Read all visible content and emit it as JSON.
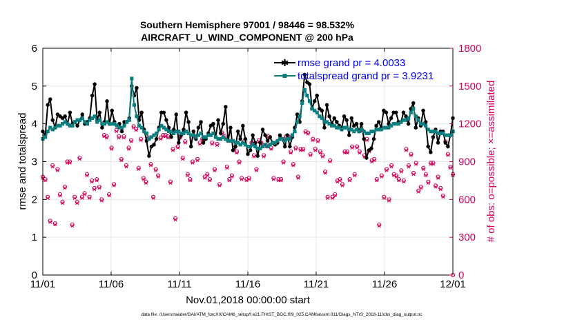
{
  "chart_data": {
    "type": "line",
    "title": "Southern Hemisphere 97001 / 98446 = 98.532%",
    "subtitle": "AIRCRAFT_U_WIND_COMPONENT @ 200 hPa",
    "xlabel": "Nov.01,2018 00:00:00 start",
    "ylabel": "rmse and totalspread",
    "y2label": "# of obs: o=possible; ×=assimilated",
    "footer": "data file: /Users/raeder/DAI/ATM_forcXX/CAM6_setup/f.e21.FHIST_BGC.f09_025.CAM6assim.011/Diags_NTrS_2018-11/obs_diag_output.nc",
    "xlim": [
      0,
      30
    ],
    "ylim": [
      0,
      6
    ],
    "y2lim": [
      0,
      1800
    ],
    "x_tick_values": [
      0,
      5,
      10,
      15,
      20,
      25,
      30
    ],
    "x_tick_labels": [
      "11/01",
      "11/06",
      "11/11",
      "11/16",
      "11/21",
      "11/26",
      "12/01"
    ],
    "y_tick_values": [
      0,
      1,
      2,
      3,
      4,
      5,
      6
    ],
    "y_tick_labels": [
      "0",
      "1",
      "2",
      "3",
      "4",
      "5",
      "6"
    ],
    "y2_tick_values": [
      0,
      300,
      600,
      900,
      1200,
      1500,
      1800
    ],
    "y2_tick_labels": [
      "0",
      "300",
      "600",
      "900",
      "1200",
      "1500",
      "1800"
    ],
    "grid": true,
    "legend": "top-right",
    "series": [
      {
        "name": "rmse grand pr = 4.0033",
        "axis": "left",
        "color": "#000000",
        "marker": "asterisk",
        "values": [
          3.8,
          3.7,
          4.5,
          4.65,
          4.1,
          3.9,
          4.25,
          4.2,
          4.15,
          4.2,
          4.0,
          4.3,
          4.0,
          4.05,
          3.95,
          4.1,
          4.25,
          4.0,
          4.05,
          4.15,
          4.75,
          5.05,
          4.1,
          4.3,
          3.9,
          4.05,
          4.6,
          4.0,
          4.35,
          4.05,
          3.95,
          4.0,
          3.8,
          4.05,
          4.05,
          4.15,
          5.0,
          4.75,
          4.95,
          4.1,
          4.3,
          3.85,
          3.55,
          3.15,
          3.4,
          3.45,
          3.6,
          3.9,
          4.3,
          4.3,
          4.1,
          3.9,
          3.65,
          3.85,
          4.25,
          3.5,
          3.7,
          3.85,
          4.3,
          4.05,
          3.4,
          3.8,
          3.6,
          3.9,
          4.05,
          3.5,
          3.6,
          3.75,
          3.95,
          4.0,
          3.65,
          4.1,
          3.75,
          4.0,
          4.45,
          3.55,
          3.9,
          3.3,
          3.4,
          3.8,
          3.6,
          3.95,
          3.6,
          3.2,
          3.3,
          3.7,
          3.5,
          3.15,
          3.5,
          3.85,
          3.7,
          3.55,
          3.65,
          3.5,
          3.45,
          3.5,
          3.7,
          3.6,
          3.4,
          3.7,
          3.4,
          3.65,
          3.9,
          4.25,
          4.05,
          4.6,
          5.3,
          5.1,
          5.05,
          4.4,
          4.6,
          4.75,
          4.4,
          4.35,
          3.9,
          4.5,
          4.2,
          4.0,
          4.15,
          4.05,
          3.95,
          3.9,
          4.2,
          4.1,
          3.7,
          4.15,
          3.95,
          4.0,
          3.8,
          4.0,
          3.6,
          3.1,
          3.3,
          3.35,
          3.6,
          3.95,
          4.05,
          3.9,
          4.35,
          4.3,
          4.0,
          4.15,
          4.3,
          4.3,
          4.05,
          4.05,
          4.3,
          4.2,
          4.0,
          4.4,
          4.55,
          3.9,
          4.15,
          3.95,
          4.35,
          4.05,
          3.4,
          3.25,
          3.65,
          3.85,
          3.5,
          3.8,
          3.8,
          3.5,
          3.4,
          3.7,
          4.15
        ]
      },
      {
        "name": "totalspread grand pr = 3.9231",
        "axis": "left",
        "color": "#0b7f7f",
        "marker": "square",
        "values": [
          3.6,
          3.65,
          3.8,
          3.9,
          3.85,
          3.9,
          3.95,
          3.95,
          4.0,
          4.05,
          4.0,
          3.95,
          3.95,
          4.05,
          4.1,
          4.1,
          4.15,
          4.05,
          4.0,
          4.1,
          4.15,
          4.2,
          4.05,
          4.1,
          4.0,
          4.0,
          4.05,
          4.0,
          4.0,
          4.0,
          3.95,
          3.9,
          3.9,
          3.95,
          4.05,
          4.1,
          5.2,
          4.5,
          4.2,
          3.95,
          3.9,
          3.8,
          3.75,
          3.6,
          3.65,
          3.7,
          3.75,
          3.85,
          3.95,
          3.9,
          3.85,
          3.8,
          3.8,
          3.75,
          3.8,
          3.8,
          3.75,
          3.75,
          3.8,
          3.75,
          3.7,
          3.7,
          3.65,
          3.7,
          3.75,
          3.65,
          3.65,
          3.7,
          3.7,
          3.75,
          3.65,
          3.6,
          3.6,
          3.65,
          3.6,
          3.55,
          3.55,
          3.55,
          3.5,
          3.5,
          3.45,
          3.5,
          3.45,
          3.4,
          3.4,
          3.45,
          3.4,
          3.35,
          3.35,
          3.4,
          3.45,
          3.4,
          3.45,
          3.5,
          3.5,
          3.55,
          3.6,
          3.6,
          3.55,
          3.6,
          3.6,
          3.7,
          3.8,
          4.05,
          4.2,
          4.55,
          4.9,
          4.75,
          4.6,
          4.4,
          4.35,
          4.3,
          4.2,
          4.15,
          4.05,
          4.05,
          4.0,
          3.95,
          3.95,
          3.9,
          3.9,
          3.85,
          3.9,
          3.9,
          3.85,
          3.85,
          3.8,
          3.85,
          3.8,
          3.85,
          3.8,
          3.75,
          3.75,
          3.8,
          3.8,
          3.85,
          3.85,
          3.85,
          3.9,
          3.9,
          3.9,
          3.95,
          4.0,
          4.0,
          4.0,
          4.05,
          4.1,
          4.1,
          4.15,
          4.3,
          4.4,
          4.2,
          4.1,
          4.0,
          4.0,
          3.95,
          3.85,
          3.8,
          3.8,
          3.8,
          3.75,
          3.75,
          3.75,
          3.7,
          3.7,
          3.7,
          3.8
        ]
      }
    ],
    "obs_possible": {
      "name": "possible",
      "axis": "right",
      "color": "#d40059",
      "marker": "circle",
      "values": [
        780,
        760,
        620,
        430,
        870,
        410,
        840,
        640,
        580,
        700,
        900,
        900,
        400,
        620,
        580,
        930,
        620,
        650,
        800,
        620,
        750,
        690,
        760,
        700,
        600,
        1110,
        1100,
        640,
        1010,
        720,
        1150,
        1100,
        920,
        1100,
        870,
        1010,
        1070,
        1180,
        1160,
        850,
        1080,
        770,
        740,
        1090,
        880,
        620,
        840,
        790,
        1090,
        1110,
        1110,
        1100,
        740,
        1000,
        450,
        1020,
        1100,
        930,
        1060,
        800,
        760,
        900,
        1100,
        920,
        1050,
        1080,
        780,
        800,
        760,
        1050,
        840,
        1040,
        720,
        1130,
        1100,
        860,
        760,
        790,
        1010,
        980,
        900,
        770,
        1060,
        760,
        770,
        1050,
        950,
        840,
        1070,
        1050,
        950,
        1030,
        1100,
        1010,
        770,
        1050,
        760,
        760,
        900,
        1100,
        1100,
        980,
        880,
        1010,
        780,
        1000,
        1000,
        1140,
        1130,
        960,
        1080,
        1000,
        1070,
        980,
        950,
        820,
        620,
        910,
        620,
        640,
        750,
        760,
        720,
        980,
        980,
        760,
        1020,
        800,
        1020,
        980,
        1150,
        950,
        1080,
        990,
        910,
        920,
        760,
        400,
        790,
        620,
        840,
        600,
        870,
        800,
        790,
        760,
        830,
        750,
        1000,
        870,
        960,
        810,
        890,
        670,
        700,
        850,
        800,
        740,
        890,
        890,
        710,
        780,
        690,
        630,
        1060,
        960,
        860,
        800
      ]
    },
    "obs_assimilated": {
      "name": "assimilated",
      "axis": "right",
      "color": "#d40059",
      "marker": "x",
      "values": [
        770,
        750,
        610,
        420,
        860,
        400,
        830,
        630,
        570,
        690,
        890,
        890,
        390,
        610,
        570,
        920,
        610,
        640,
        790,
        610,
        740,
        680,
        750,
        690,
        590,
        1100,
        1090,
        630,
        1000,
        710,
        1140,
        1090,
        910,
        1090,
        860,
        1000,
        1060,
        1170,
        1150,
        840,
        1070,
        760,
        730,
        1080,
        870,
        610,
        830,
        780,
        1080,
        1100,
        1100,
        1090,
        730,
        990,
        440,
        1010,
        1090,
        920,
        1050,
        790,
        750,
        890,
        1090,
        910,
        1040,
        1070,
        770,
        790,
        750,
        1040,
        830,
        1030,
        710,
        1120,
        1090,
        850,
        750,
        780,
        1000,
        970,
        890,
        760,
        1050,
        750,
        760,
        1040,
        940,
        830,
        1060,
        1040,
        940,
        1020,
        1090,
        1000,
        760,
        1040,
        750,
        750,
        890,
        1090,
        1090,
        970,
        870,
        1000,
        770,
        990,
        990,
        1130,
        1120,
        950,
        1070,
        990,
        1060,
        970,
        940,
        810,
        610,
        900,
        610,
        630,
        740,
        750,
        710,
        970,
        970,
        750,
        1010,
        790,
        1010,
        970,
        1140,
        940,
        1070,
        980,
        900,
        910,
        750,
        390,
        780,
        610,
        830,
        590,
        860,
        790,
        780,
        750,
        820,
        740,
        990,
        860,
        950,
        800,
        880,
        660,
        690,
        840,
        790,
        730,
        880,
        880,
        700,
        770,
        680,
        620,
        1050,
        950,
        850,
        790
      ]
    },
    "colors": {
      "rmse": "#000000",
      "spread": "#0b7f7f",
      "obs": "#d40059",
      "legend_text": "#0000ff",
      "grid": "#e6e6e6"
    }
  }
}
